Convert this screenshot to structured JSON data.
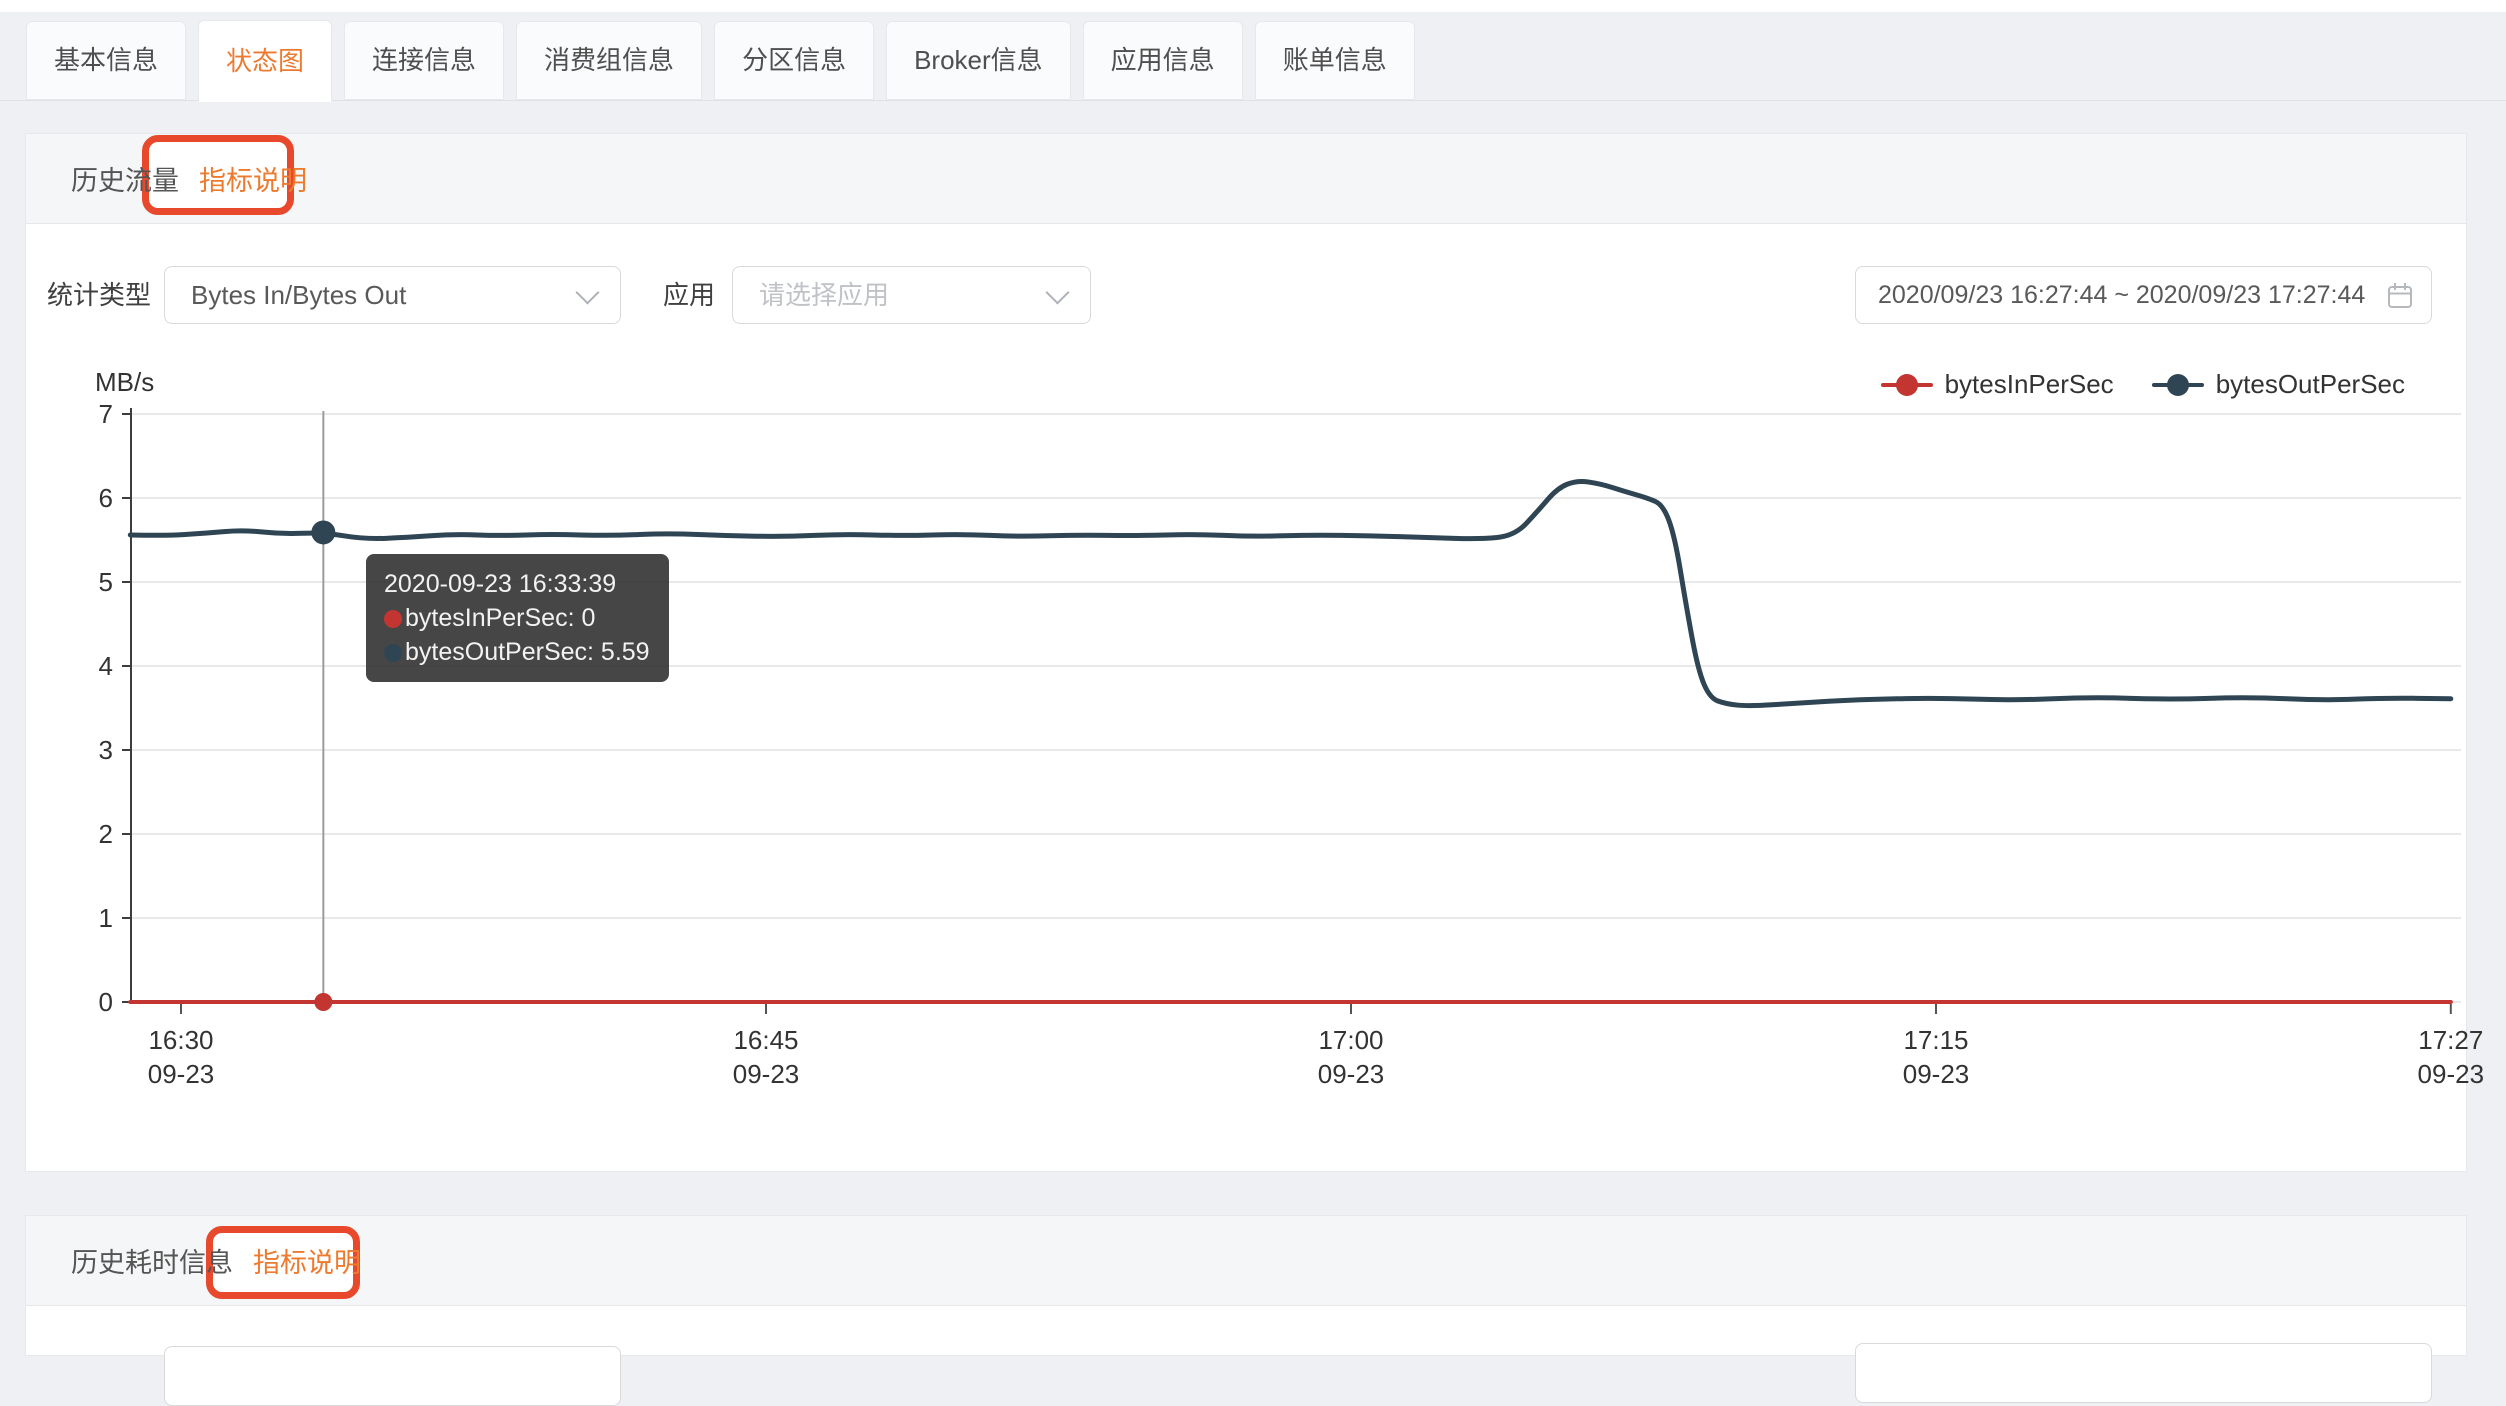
{
  "tabs": [
    {
      "id": "basic-info",
      "label": "基本信息",
      "active": false
    },
    {
      "id": "status-chart",
      "label": "状态图",
      "active": true
    },
    {
      "id": "connection-info",
      "label": "连接信息",
      "active": false
    },
    {
      "id": "consumer-group-info",
      "label": "消费组信息",
      "active": false
    },
    {
      "id": "partition-info",
      "label": "分区信息",
      "active": false
    },
    {
      "id": "broker-info",
      "label": "Broker信息",
      "active": false
    },
    {
      "id": "app-info",
      "label": "应用信息",
      "active": false
    },
    {
      "id": "billing-info",
      "label": "账单信息",
      "active": false
    }
  ],
  "traffic_section": {
    "title": "历史流量",
    "metric_link": "指标说明"
  },
  "latency_section": {
    "title": "历史耗时信息",
    "metric_link": "指标说明"
  },
  "controls": {
    "stat_type_label": "统计类型",
    "stat_type_value": "Bytes In/Bytes Out",
    "app_label": "应用",
    "app_placeholder": "请选择应用",
    "date_range": "2020/09/23 16:27:44 ~ 2020/09/23 17:27:44"
  },
  "annotation_color": "#e8492c",
  "accent_color": "#ed7b2f",
  "chart_data": {
    "type": "line",
    "title": "历史流量",
    "unit": "MB/s",
    "ylim": [
      0,
      7
    ],
    "y_ticks": [
      0,
      1,
      2,
      3,
      4,
      5,
      6,
      7
    ],
    "x_ticks": [
      {
        "m": 990,
        "time": "16:30",
        "date": "09-23"
      },
      {
        "m": 1005,
        "time": "16:45",
        "date": "09-23"
      },
      {
        "m": 1020,
        "time": "17:00",
        "date": "09-23"
      },
      {
        "m": 1035,
        "time": "17:15",
        "date": "09-23"
      },
      {
        "m": 1048.2,
        "time": "17:27",
        "date": "09-23"
      }
    ],
    "x_range_minutes": [
      988.7,
      1048.2
    ],
    "grid": true,
    "legend_position": "top-right",
    "legend": [
      {
        "name": "bytesInPerSec",
        "color": "#c23531"
      },
      {
        "name": "bytesOutPerSec",
        "color": "#2f4554"
      }
    ],
    "series": [
      {
        "name": "bytesInPerSec",
        "color": "#c23531",
        "points": [
          [
            988.7,
            0
          ],
          [
            1048.2,
            0
          ]
        ]
      },
      {
        "name": "bytesOutPerSec",
        "color": "#2f4554",
        "points": [
          [
            988.7,
            5.56
          ],
          [
            989.6,
            5.55
          ],
          [
            990.6,
            5.58
          ],
          [
            991.6,
            5.62
          ],
          [
            992.6,
            5.57
          ],
          [
            993.65,
            5.59
          ],
          [
            994.7,
            5.51
          ],
          [
            995.8,
            5.53
          ],
          [
            997,
            5.57
          ],
          [
            998.2,
            5.55
          ],
          [
            999.5,
            5.57
          ],
          [
            1001,
            5.55
          ],
          [
            1002.5,
            5.58
          ],
          [
            1004,
            5.55
          ],
          [
            1005.5,
            5.54
          ],
          [
            1007,
            5.57
          ],
          [
            1008.5,
            5.55
          ],
          [
            1010,
            5.57
          ],
          [
            1011.5,
            5.54
          ],
          [
            1013,
            5.56
          ],
          [
            1014.5,
            5.55
          ],
          [
            1016,
            5.57
          ],
          [
            1017.5,
            5.54
          ],
          [
            1019,
            5.56
          ],
          [
            1020.5,
            5.55
          ],
          [
            1022,
            5.53
          ],
          [
            1023.3,
            5.51
          ],
          [
            1024.2,
            5.55
          ],
          [
            1024.8,
            5.85
          ],
          [
            1025.3,
            6.12
          ],
          [
            1025.8,
            6.21
          ],
          [
            1026.4,
            6.17
          ],
          [
            1027,
            6.08
          ],
          [
            1027.6,
            6.0
          ],
          [
            1028.0,
            5.92
          ],
          [
            1028.3,
            5.55
          ],
          [
            1028.6,
            4.7
          ],
          [
            1028.9,
            3.95
          ],
          [
            1029.2,
            3.62
          ],
          [
            1029.6,
            3.55
          ],
          [
            1030.2,
            3.52
          ],
          [
            1031.5,
            3.56
          ],
          [
            1033,
            3.6
          ],
          [
            1035,
            3.62
          ],
          [
            1037,
            3.59
          ],
          [
            1039,
            3.63
          ],
          [
            1041,
            3.6
          ],
          [
            1043,
            3.63
          ],
          [
            1045,
            3.59
          ],
          [
            1046.5,
            3.62
          ],
          [
            1048.2,
            3.61
          ]
        ]
      }
    ],
    "tooltip": {
      "timestamp": "2020-09-23 16:33:39",
      "minute": 993.65,
      "items": [
        {
          "name": "bytesInPerSec",
          "value": 0,
          "color": "#c23531"
        },
        {
          "name": "bytesOutPerSec",
          "value": 5.59,
          "color": "#2f4554"
        }
      ]
    }
  }
}
